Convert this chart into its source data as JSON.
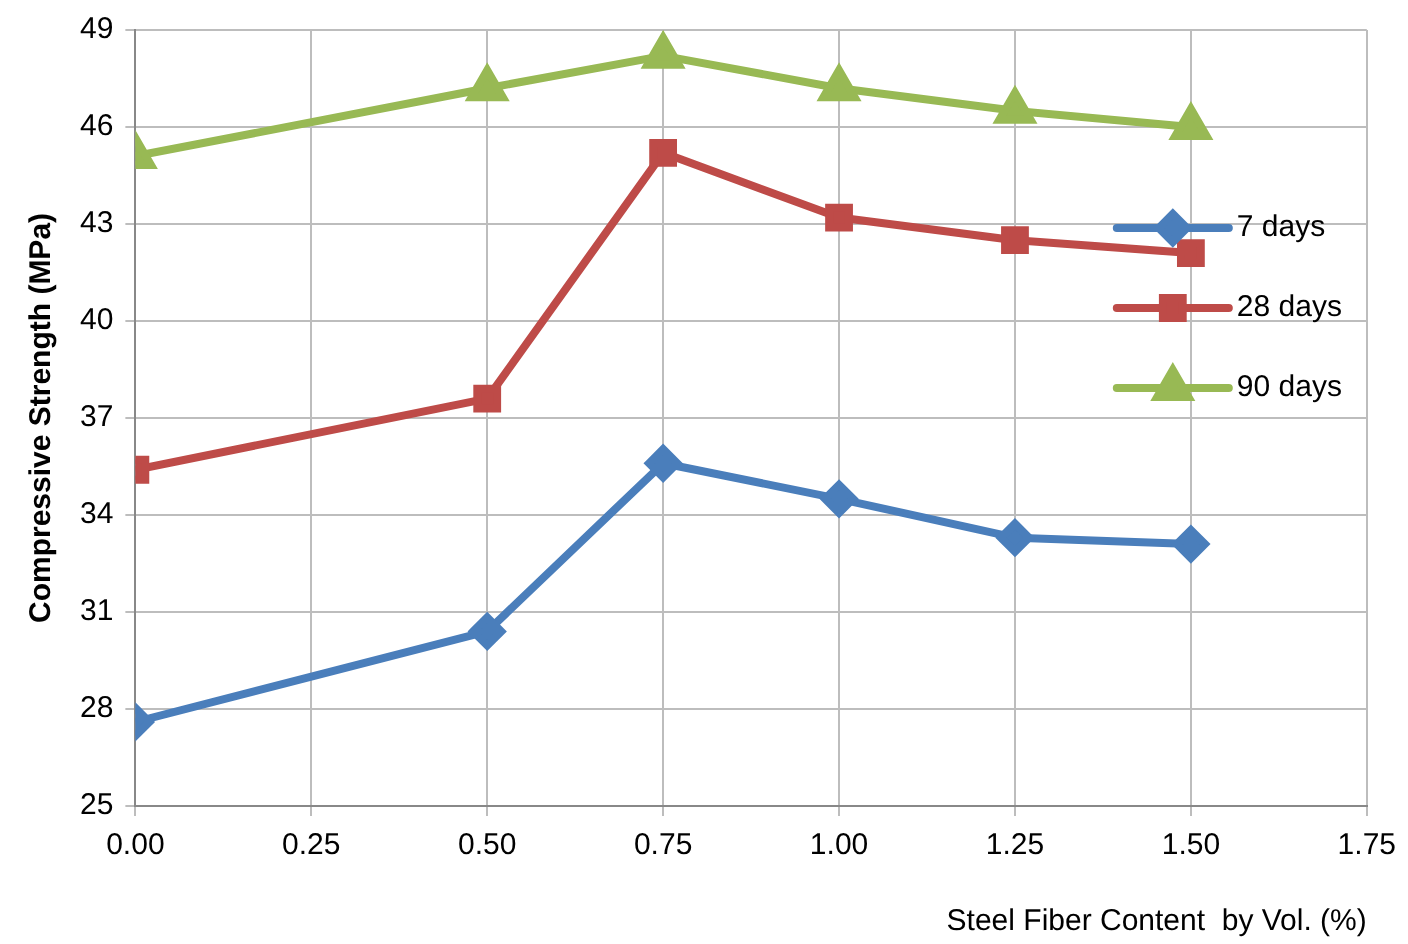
{
  "chart_data": {
    "type": "line",
    "xlabel": "Steel Fiber Content  by Vol. (%)",
    "ylabel": "Compressive Strength (MPa)",
    "x": [
      0,
      0.5,
      0.75,
      1.0,
      1.25,
      1.5
    ],
    "series": [
      {
        "name": "7 days",
        "color": "#4a7ebb",
        "marker": "diamond",
        "values": [
          27.6,
          30.4,
          35.6,
          34.5,
          33.3,
          33.1
        ]
      },
      {
        "name": "28 days",
        "color": "#be4b48",
        "marker": "square",
        "values": [
          35.4,
          37.6,
          45.2,
          43.2,
          42.5,
          42.1
        ]
      },
      {
        "name": "90 days",
        "color": "#98b954",
        "marker": "triangle",
        "values": [
          45.1,
          47.2,
          48.2,
          47.2,
          46.5,
          46.0
        ]
      }
    ],
    "xlim": [
      0,
      1.75
    ],
    "xticks": [
      {
        "value": 0,
        "label": "0.00"
      },
      {
        "value": 0.25,
        "label": "0.25"
      },
      {
        "value": 0.5,
        "label": "0.50"
      },
      {
        "value": 0.75,
        "label": "0.75"
      },
      {
        "value": 1,
        "label": "1.00"
      },
      {
        "value": 1.25,
        "label": "1.25"
      },
      {
        "value": 1.5,
        "label": "1.50"
      },
      {
        "value": 1.75,
        "label": "1.75"
      }
    ],
    "ylim": [
      25,
      49
    ],
    "yticks": [
      25,
      28,
      31,
      34,
      37,
      40,
      43,
      46,
      49
    ],
    "grid": true,
    "legend": "right",
    "line_style": "solid"
  }
}
